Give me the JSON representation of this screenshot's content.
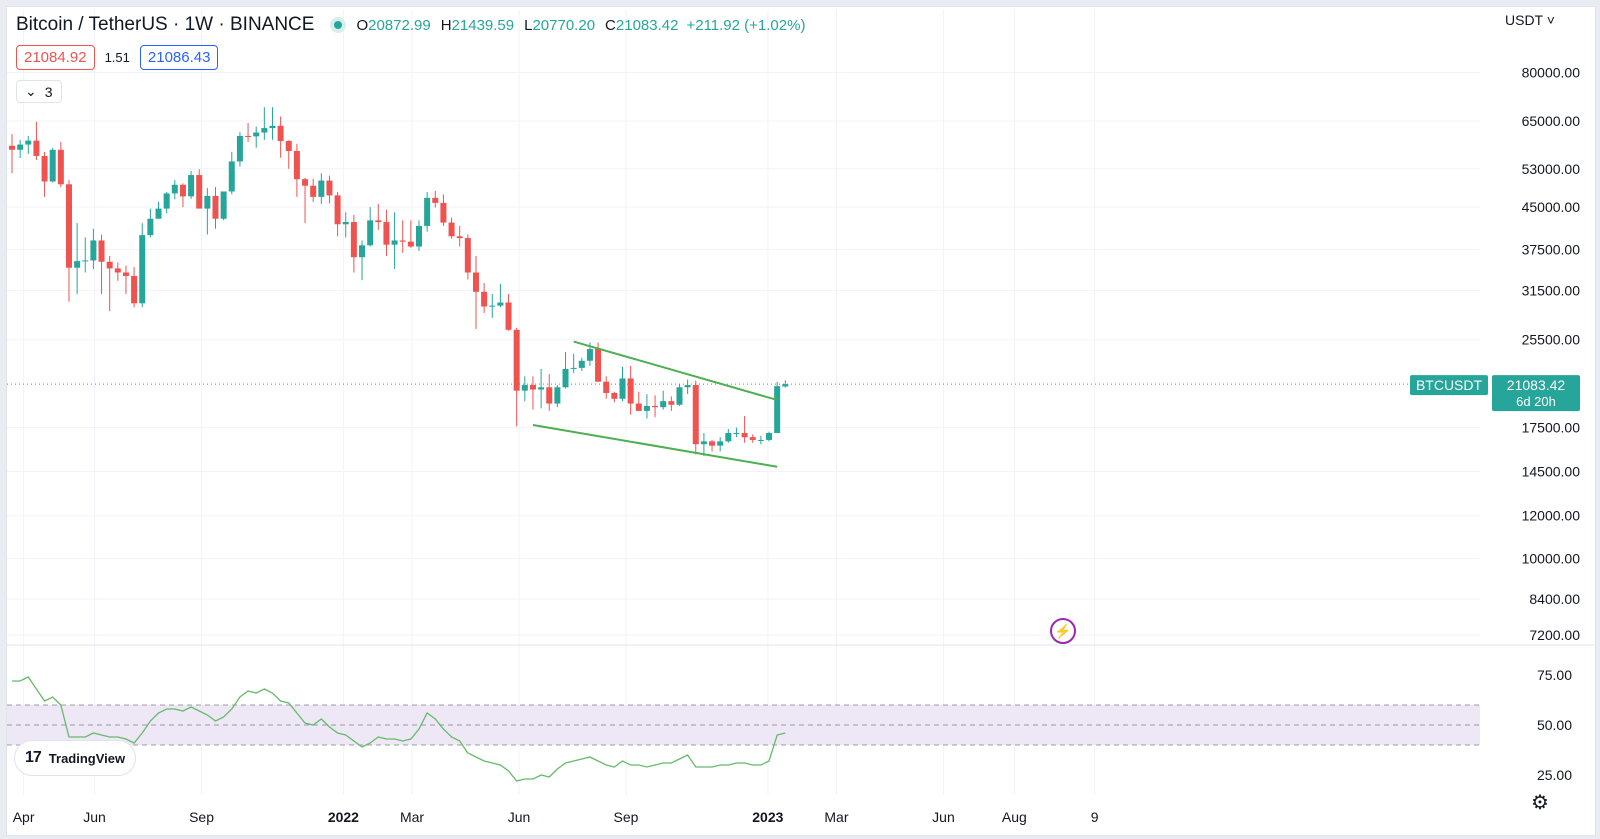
{
  "header": {
    "symbol_title": "Bitcoin / TetherUS · 1W · BINANCE",
    "ohlc": [
      {
        "key": "O",
        "value": "20872.99"
      },
      {
        "key": "H",
        "value": "21439.59"
      },
      {
        "key": "L",
        "value": "20770.20"
      },
      {
        "key": "C",
        "value": "21083.42"
      }
    ],
    "change": "+211.92 (+1.02%)",
    "sell_price": "21084.92",
    "spread": "1.51",
    "buy_price": "21086.43",
    "indicators_count": "3",
    "currency": "USDT"
  },
  "colors": {
    "up": "#26a69a",
    "down": "#ef5350",
    "trendline": "#4caf50",
    "rsi_line": "#66bb6a",
    "rsi_band": "#ede7f6",
    "sell": "#ef5350",
    "buy": "#2962ff"
  },
  "last_price_tag": {
    "symbol": "BTCUSDT",
    "price": "21083.42",
    "countdown": "6d 20h"
  },
  "branding": {
    "logo_text": "TradingView"
  },
  "icons": {
    "settings": "gear-icon",
    "alert": "lightning-icon",
    "logo": "tradingview-logo-icon"
  },
  "chart_data": [
    {
      "type": "candlestick",
      "title": "Bitcoin / TetherUS · 1W · BINANCE",
      "yscale": "log",
      "ylim": [
        6900,
        92000
      ],
      "y_ticks": [
        "80000.00",
        "65000.00",
        "53000.00",
        "45000.00",
        "37500.00",
        "31500.00",
        "25500.00",
        "17500.00",
        "14500.00",
        "12000.00",
        "10000.00",
        "8400.00",
        "7200.00"
      ],
      "x_ticks": [
        "Apr",
        "Jun",
        "Sep",
        "2022",
        "Mar",
        "Jun",
        "Sep",
        "2023",
        "Mar",
        "Jun",
        "Aug",
        "9"
      ],
      "grid": true,
      "weeks_start": "2021-03-22",
      "candles": [
        [
          58500,
          61500,
          52000,
          57500
        ],
        [
          57500,
          60000,
          55500,
          58800
        ],
        [
          58800,
          61000,
          56500,
          59800
        ],
        [
          59800,
          64800,
          55000,
          56000
        ],
        [
          56000,
          57000,
          47000,
          50200
        ],
        [
          50200,
          58000,
          50000,
          57500
        ],
        [
          57500,
          59500,
          49000,
          49600
        ],
        [
          49600,
          50500,
          30000,
          34700
        ],
        [
          34700,
          42000,
          31000,
          35700
        ],
        [
          35700,
          39500,
          34000,
          35800
        ],
        [
          35800,
          41000,
          34500,
          39000
        ],
        [
          39000,
          40000,
          31000,
          35600
        ],
        [
          35600,
          36500,
          28800,
          34600
        ],
        [
          34600,
          35500,
          32800,
          34000
        ],
        [
          34000,
          35000,
          31000,
          33500
        ],
        [
          33500,
          34800,
          29300,
          29800
        ],
        [
          29800,
          42000,
          29300,
          39900
        ],
        [
          39900,
          44700,
          39500,
          42800
        ],
        [
          42800,
          46000,
          43000,
          44700
        ],
        [
          44700,
          48000,
          43800,
          47700
        ],
        [
          47700,
          50500,
          46500,
          49500
        ],
        [
          49500,
          49800,
          45000,
          47100
        ],
        [
          47100,
          52500,
          46600,
          51600
        ],
        [
          51600,
          52900,
          44700,
          44700
        ],
        [
          44700,
          48800,
          40000,
          47200
        ],
        [
          47200,
          49000,
          41000,
          42800
        ],
        [
          42800,
          48000,
          42500,
          48100
        ],
        [
          48100,
          57000,
          47500,
          54700
        ],
        [
          54700,
          62000,
          53500,
          61000
        ],
        [
          61000,
          64500,
          59500,
          60900
        ],
        [
          60900,
          63500,
          58000,
          61900
        ],
        [
          61900,
          69000,
          60000,
          63100
        ],
        [
          63100,
          69000,
          60000,
          63700
        ],
        [
          63700,
          66300,
          55600,
          59700
        ],
        [
          59700,
          59900,
          53000,
          57200
        ],
        [
          57200,
          59000,
          47000,
          50700
        ],
        [
          50700,
          51000,
          42000,
          49300
        ],
        [
          49300,
          50800,
          46000,
          47000
        ],
        [
          47000,
          52000,
          45600,
          50400
        ],
        [
          50400,
          51500,
          45700,
          47300
        ],
        [
          47300,
          48000,
          39700,
          41800
        ],
        [
          41800,
          44000,
          39500,
          42200
        ],
        [
          42200,
          43500,
          34000,
          36300
        ],
        [
          36300,
          39000,
          32900,
          38200
        ],
        [
          38200,
          45000,
          38000,
          42500
        ],
        [
          42500,
          45600,
          40800,
          42200
        ],
        [
          42200,
          44500,
          36500,
          38300
        ],
        [
          38300,
          44000,
          34500,
          39000
        ],
        [
          39000,
          42500,
          37000,
          38800
        ],
        [
          38800,
          42500,
          37800,
          38000
        ],
        [
          38000,
          42500,
          37300,
          41500
        ],
        [
          41500,
          48000,
          40500,
          46800
        ],
        [
          46800,
          48200,
          44900,
          45800
        ],
        [
          45800,
          47500,
          41500,
          42100
        ],
        [
          42100,
          43000,
          39300,
          39700
        ],
        [
          39700,
          41500,
          38000,
          39400
        ],
        [
          39400,
          40000,
          33000,
          34000
        ],
        [
          34000,
          36500,
          26700,
          31300
        ],
        [
          31300,
          32500,
          28600,
          29400
        ],
        [
          29400,
          31000,
          28000,
          29500
        ],
        [
          29500,
          32400,
          29300,
          29900
        ],
        [
          29900,
          31000,
          26500,
          26600
        ],
        [
          26600,
          26800,
          17600,
          20500
        ],
        [
          20500,
          21800,
          19600,
          21000
        ],
        [
          21000,
          21800,
          18900,
          20600
        ],
        [
          20600,
          22500,
          19000,
          20800
        ],
        [
          20800,
          22000,
          18800,
          19400
        ],
        [
          19400,
          21000,
          19100,
          20800
        ],
        [
          20800,
          24200,
          20700,
          22500
        ],
        [
          22500,
          24000,
          22100,
          22600
        ],
        [
          22600,
          23600,
          22300,
          23300
        ],
        [
          23300,
          25200,
          22800,
          24500
        ],
        [
          24500,
          25200,
          21300,
          21300
        ],
        [
          21300,
          21800,
          19800,
          20300
        ],
        [
          20300,
          20400,
          19500,
          19800
        ],
        [
          19800,
          22700,
          19600,
          21600
        ],
        [
          21600,
          22800,
          18500,
          19400
        ],
        [
          19400,
          20400,
          18900,
          18800
        ],
        [
          18800,
          20200,
          18200,
          19200
        ],
        [
          19200,
          20100,
          18300,
          19100
        ],
        [
          19100,
          20500,
          18900,
          19600
        ],
        [
          19600,
          20000,
          18800,
          19300
        ],
        [
          19300,
          21100,
          19200,
          20800
        ],
        [
          20800,
          21500,
          20200,
          21000
        ],
        [
          21000,
          21400,
          15600,
          16300
        ],
        [
          16300,
          17100,
          15500,
          16500
        ],
        [
          16500,
          16600,
          15800,
          16200
        ],
        [
          16200,
          16800,
          15800,
          16500
        ],
        [
          16500,
          17400,
          16400,
          17100
        ],
        [
          17100,
          17500,
          16800,
          17100
        ],
        [
          17100,
          18400,
          16400,
          16800
        ],
        [
          16800,
          17000,
          16400,
          16600
        ],
        [
          16600,
          16900,
          16300,
          16600
        ],
        [
          16600,
          17200,
          16500,
          17100
        ],
        [
          17100,
          21300,
          17100,
          20900
        ],
        [
          20873,
          21440,
          20770,
          21083
        ]
      ],
      "trendlines": [
        {
          "name": "upper",
          "from": [
            "2022-07-18",
            25300
          ],
          "to": [
            "2023-01-09",
            19700
          ]
        },
        {
          "name": "lower",
          "from": [
            "2022-06-13",
            17700
          ],
          "to": [
            "2023-01-09",
            14800
          ]
        }
      ]
    },
    {
      "type": "line",
      "title": "",
      "ylim": [
        15,
        90
      ],
      "y_ticks": [
        "75.00",
        "50.00",
        "25.00"
      ],
      "bands": {
        "upper": 60,
        "middle": 50,
        "lower": 40
      },
      "values": [
        72,
        72,
        74,
        68,
        62,
        64,
        60,
        44,
        44,
        44,
        46,
        45,
        44,
        44,
        43,
        41,
        46,
        52,
        56,
        58,
        58,
        57,
        59,
        57,
        55,
        52,
        54,
        58,
        64,
        67,
        66,
        68,
        66,
        62,
        61,
        56,
        51,
        50,
        53,
        49,
        46,
        45,
        42,
        39,
        41,
        44,
        43,
        43,
        42,
        43,
        48,
        56,
        53,
        48,
        44,
        42,
        36,
        34,
        32,
        31,
        30,
        27,
        22,
        23,
        23,
        25,
        24,
        28,
        31,
        32,
        33,
        34,
        32,
        30,
        29,
        32,
        30,
        30,
        29,
        30,
        31,
        31,
        33,
        35,
        29,
        29,
        29,
        30,
        30,
        31,
        31,
        30,
        30,
        32,
        45,
        46
      ]
    }
  ]
}
